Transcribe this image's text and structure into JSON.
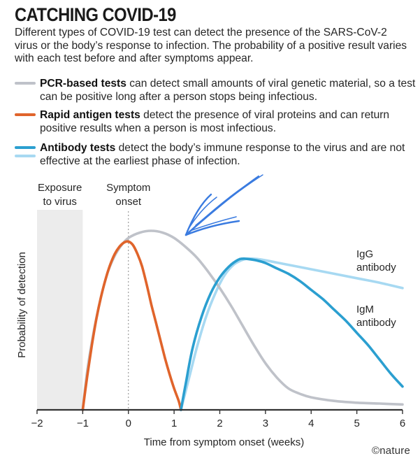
{
  "header": {
    "title": "CATCHING COVID-19",
    "subtitle": "Different types of COVID-19 test can detect the presence of the SARS-CoV-2 virus or the body’s response to infection. The probability of a positive result varies with each test before and after symptoms appear."
  },
  "legend": {
    "pcr": {
      "bold": "PCR-based tests",
      "text": " can detect small amounts of viral genetic material, so a test can be positive long after a person stops being infectious."
    },
    "antigen": {
      "bold": "Rapid antigen tests",
      "text": " detect the presence of viral proteins and can return positive results when a person is most infectious."
    },
    "antibody": {
      "bold": "Antibody tests",
      "text": " detect the body’s immune response to the virus and are not effective at the earliest phase of infection."
    }
  },
  "colors": {
    "pcr": "#bfc2c9",
    "antigen": "#e0642b",
    "igm": "#2b9fd0",
    "igg": "#a7d9f2",
    "exposure_band": "#ececec",
    "axis": "#333333",
    "annotation_arrow": "#3a7be0"
  },
  "credit": "©nature",
  "chart_data": {
    "type": "line",
    "xlabel": "Time from symptom onset (weeks)",
    "ylabel": "Probability of detection",
    "xlim": [
      -2,
      6
    ],
    "ylim": [
      0,
      1
    ],
    "x_ticks": [
      -2,
      -1,
      0,
      1,
      2,
      3,
      4,
      5,
      6
    ],
    "x_tick_labels": [
      "−2",
      "−1",
      "0",
      "1",
      "2",
      "3",
      "4",
      "5",
      "6"
    ],
    "grid": false,
    "annotations": [
      {
        "label_lines": [
          "Exposure",
          "to virus"
        ],
        "region": [
          -2,
          -1
        ]
      },
      {
        "label_lines": [
          "Symptom",
          "onset"
        ],
        "x": 0
      }
    ],
    "series": [
      {
        "key": "pcr",
        "x": [
          -1.0,
          -0.9,
          -0.75,
          -0.6,
          -0.45,
          -0.3,
          -0.15,
          0.0,
          0.25,
          0.5,
          0.75,
          1.0,
          1.25,
          1.5,
          1.75,
          2.0,
          2.25,
          2.5,
          2.75,
          3.0,
          3.25,
          3.5,
          3.75,
          4.0,
          4.5,
          5.0,
          5.5,
          6.0
        ],
        "y": [
          0.0,
          0.22,
          0.45,
          0.63,
          0.77,
          0.86,
          0.92,
          0.96,
          0.99,
          1.0,
          0.99,
          0.96,
          0.91,
          0.85,
          0.77,
          0.68,
          0.58,
          0.47,
          0.36,
          0.26,
          0.18,
          0.12,
          0.09,
          0.07,
          0.05,
          0.04,
          0.035,
          0.03
        ]
      },
      {
        "key": "antigen",
        "x": [
          -1.0,
          -0.9,
          -0.8,
          -0.7,
          -0.6,
          -0.5,
          -0.4,
          -0.3,
          -0.2,
          -0.1,
          0.0,
          0.1,
          0.2,
          0.3,
          0.4,
          0.5,
          0.6,
          0.7,
          0.8,
          0.9,
          1.0,
          1.1,
          1.15
        ],
        "y": [
          0.0,
          0.19,
          0.36,
          0.51,
          0.63,
          0.73,
          0.81,
          0.87,
          0.91,
          0.934,
          0.94,
          0.92,
          0.87,
          0.8,
          0.7,
          0.59,
          0.49,
          0.39,
          0.29,
          0.2,
          0.12,
          0.05,
          0.0
        ]
      },
      {
        "name": "IgM antibody",
        "key": "igm",
        "x": [
          1.15,
          1.25,
          1.4,
          1.6,
          1.8,
          2.0,
          2.2,
          2.4,
          2.5,
          2.6,
          2.8,
          3.0,
          3.25,
          3.5,
          3.75,
          4.0,
          4.25,
          4.5,
          4.75,
          5.0,
          5.25,
          5.5,
          5.75,
          6.0
        ],
        "y": [
          0.0,
          0.14,
          0.34,
          0.52,
          0.65,
          0.74,
          0.8,
          0.838,
          0.844,
          0.843,
          0.835,
          0.82,
          0.79,
          0.76,
          0.72,
          0.67,
          0.62,
          0.56,
          0.5,
          0.43,
          0.36,
          0.28,
          0.2,
          0.13
        ]
      },
      {
        "name": "IgG antibody",
        "key": "igg",
        "x": [
          1.15,
          1.3,
          1.5,
          1.7,
          1.9,
          2.1,
          2.3,
          2.5,
          2.6,
          2.7,
          2.9,
          3.2,
          3.5,
          4.0,
          4.5,
          5.0,
          5.5,
          6.0
        ],
        "y": [
          0.0,
          0.15,
          0.35,
          0.52,
          0.65,
          0.75,
          0.81,
          0.838,
          0.844,
          0.845,
          0.84,
          0.825,
          0.81,
          0.785,
          0.76,
          0.735,
          0.71,
          0.68
        ]
      }
    ]
  }
}
